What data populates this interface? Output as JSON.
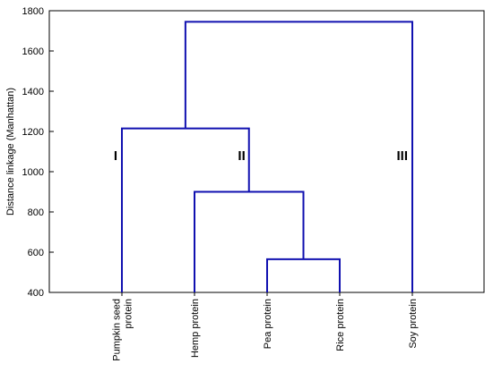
{
  "chart_data": {
    "type": "dendrogram",
    "title": "",
    "ylabel": "Distance linkage (Manhattan)",
    "ylim": [
      400,
      1800
    ],
    "yticks": [
      400,
      600,
      800,
      1000,
      1200,
      1400,
      1600,
      1800
    ],
    "grid": false,
    "line_color": "#1010b0",
    "leaves": [
      {
        "lines": [
          "Pumpkin seed",
          "protein"
        ]
      },
      {
        "lines": [
          "Hemp protein"
        ]
      },
      {
        "lines": [
          "Pea protein"
        ]
      },
      {
        "lines": [
          "Rice protein"
        ]
      },
      {
        "lines": [
          "Soy protein"
        ]
      }
    ],
    "merges": [
      {
        "left": "leaf:2",
        "right": "leaf:3",
        "height": 565
      },
      {
        "left": "leaf:1",
        "right": "merge:0",
        "height": 900
      },
      {
        "left": "leaf:0",
        "right": "merge:1",
        "height": 1215
      },
      {
        "left": "merge:2",
        "right": "leaf:4",
        "height": 1745
      }
    ],
    "cluster_labels": [
      {
        "text": "I",
        "leaf_index": 0,
        "y": 1040,
        "side": "left"
      },
      {
        "text": "II",
        "leaf_index": 2,
        "y": 1040,
        "side": "left-of-link"
      },
      {
        "text": "III",
        "leaf_index": 4,
        "y": 1040,
        "side": "left"
      }
    ]
  }
}
